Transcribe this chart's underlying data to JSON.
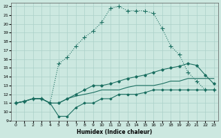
{
  "xlabel": "Humidex (Indice chaleur)",
  "xlim": [
    -0.5,
    23.5
  ],
  "ylim": [
    9,
    22.4
  ],
  "xticks": [
    0,
    1,
    2,
    3,
    4,
    5,
    6,
    7,
    8,
    9,
    10,
    11,
    12,
    13,
    14,
    15,
    16,
    17,
    18,
    19,
    20,
    21,
    22,
    23
  ],
  "yticks": [
    9,
    10,
    11,
    12,
    13,
    14,
    15,
    16,
    17,
    18,
    19,
    20,
    21,
    22
  ],
  "bg_color": "#cce8e0",
  "line_color": "#1a6e60",
  "grid_color": "#aad0c8",
  "line1_x": [
    0,
    1,
    2,
    3,
    4,
    5,
    6,
    7,
    8,
    9,
    10,
    11,
    12,
    13,
    14,
    15,
    16,
    17,
    18,
    19,
    20,
    21,
    22,
    23
  ],
  "line1_y": [
    11.0,
    11.2,
    11.5,
    11.5,
    11.0,
    15.5,
    16.2,
    17.5,
    18.5,
    19.2,
    20.2,
    21.8,
    22.0,
    21.5,
    21.5,
    21.5,
    21.2,
    19.5,
    17.5,
    16.5,
    14.5,
    13.5,
    12.5,
    12.5
  ],
  "line2_x": [
    0,
    1,
    2,
    3,
    4,
    5,
    6,
    7,
    8,
    9,
    10,
    11,
    12,
    13,
    14,
    15,
    16,
    17,
    18,
    19,
    20,
    21,
    22,
    23
  ],
  "line2_y": [
    11.0,
    11.2,
    11.5,
    11.5,
    11.0,
    11.0,
    11.5,
    12.0,
    12.5,
    13.0,
    13.0,
    13.2,
    13.5,
    13.8,
    14.0,
    14.2,
    14.5,
    14.8,
    15.0,
    15.2,
    15.5,
    15.3,
    14.2,
    13.2
  ],
  "line3_x": [
    0,
    1,
    2,
    3,
    4,
    5,
    6,
    7,
    8,
    9,
    10,
    11,
    12,
    13,
    14,
    15,
    16,
    17,
    18,
    19,
    20,
    21,
    22,
    23
  ],
  "line3_y": [
    11.0,
    11.2,
    11.5,
    11.5,
    11.0,
    11.0,
    11.5,
    11.8,
    12.0,
    12.2,
    12.5,
    12.5,
    12.5,
    12.8,
    13.0,
    13.0,
    13.0,
    13.2,
    13.5,
    13.5,
    13.8,
    13.8,
    13.8,
    13.8
  ],
  "line4_x": [
    0,
    1,
    2,
    3,
    4,
    5,
    6,
    7,
    8,
    9,
    10,
    11,
    12,
    13,
    14,
    15,
    16,
    17,
    18,
    19,
    20,
    21,
    22,
    23
  ],
  "line4_y": [
    11.0,
    11.2,
    11.5,
    11.5,
    11.0,
    9.5,
    9.5,
    10.5,
    11.0,
    11.0,
    11.5,
    11.5,
    12.0,
    12.0,
    12.0,
    12.2,
    12.5,
    12.5,
    12.5,
    12.5,
    12.5,
    12.5,
    12.5,
    12.5
  ]
}
